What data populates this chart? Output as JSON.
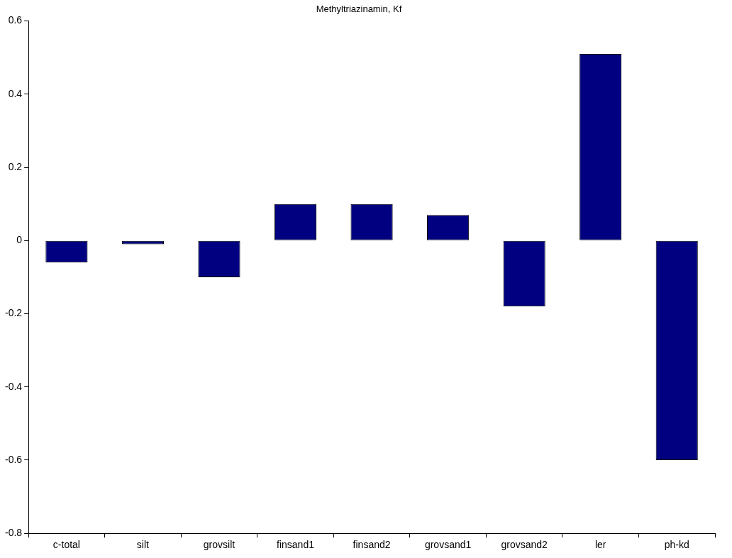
{
  "chart_data": {
    "type": "bar",
    "title": "Methyltriazinamin, Kf",
    "categories": [
      "c-total",
      "silt",
      "grovsilt",
      "finsand1",
      "finsand2",
      "grovsand1",
      "grovsand2",
      "ler",
      "ph-kd"
    ],
    "values": [
      -0.06,
      -0.01,
      -0.1,
      0.1,
      0.1,
      0.07,
      -0.18,
      0.51,
      -0.6
    ],
    "color": "#000080",
    "ylim": [
      -0.8,
      0.6
    ],
    "yticks": [
      -0.8,
      -0.6,
      -0.4,
      -0.2,
      0,
      0.2,
      0.4,
      0.6
    ],
    "grid": false,
    "legend": false
  }
}
